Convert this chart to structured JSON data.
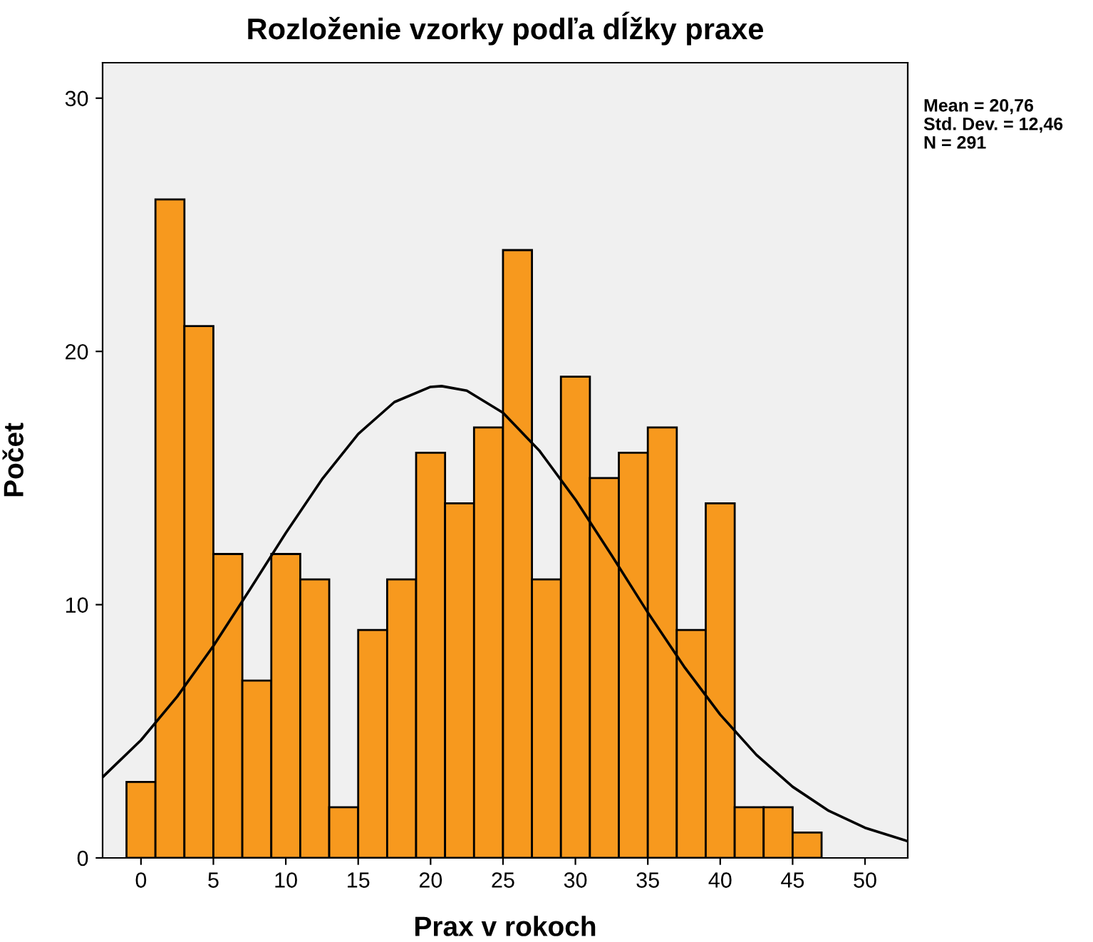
{
  "chart_data": {
    "type": "histogram",
    "title": "Rozloženie vzorky podľa dĺžky praxe",
    "xlabel": "Prax v rokoch",
    "ylabel": "Počet",
    "series": [
      {
        "color": "#f7991e",
        "bins": [
          -1,
          1,
          3,
          5,
          7,
          9,
          11,
          13,
          15,
          17,
          19,
          21,
          23,
          25,
          27,
          29,
          31,
          33,
          35,
          37,
          39,
          41,
          43,
          45,
          47
        ],
        "values": [
          3,
          26,
          21,
          12,
          7,
          12,
          11,
          2,
          9,
          11,
          16,
          14,
          17,
          24,
          11,
          19,
          15,
          16,
          17,
          9,
          14,
          2,
          2,
          1
        ]
      },
      {
        "type": "line",
        "color": "#000000",
        "x": [
          -2.65,
          0,
          2.5,
          5,
          7.5,
          10,
          12.5,
          15,
          17.5,
          20,
          20.76,
          22.5,
          25,
          27.5,
          30,
          32.5,
          35,
          37.5,
          40,
          42.5,
          45,
          47.5,
          50,
          52.95
        ],
        "values": [
          3.19,
          4.65,
          6.37,
          8.37,
          10.58,
          12.83,
          14.95,
          16.74,
          18.0,
          18.6,
          18.63,
          18.45,
          17.58,
          16.09,
          14.15,
          11.95,
          9.69,
          7.56,
          5.66,
          4.07,
          2.81,
          1.86,
          1.19,
          0.66
        ]
      }
    ],
    "xlim": [
      -2.65,
      52.95
    ],
    "ylim": [
      0,
      31.4
    ],
    "xticks": [
      0,
      5,
      10,
      15,
      20,
      25,
      30,
      35,
      40,
      45,
      50
    ],
    "yticks": [
      0,
      10,
      20,
      30
    ],
    "grid": false,
    "legend": false,
    "annotations": [
      "Mean = 20,76",
      "Std. Dev. = 12,46",
      "N = 291"
    ]
  }
}
